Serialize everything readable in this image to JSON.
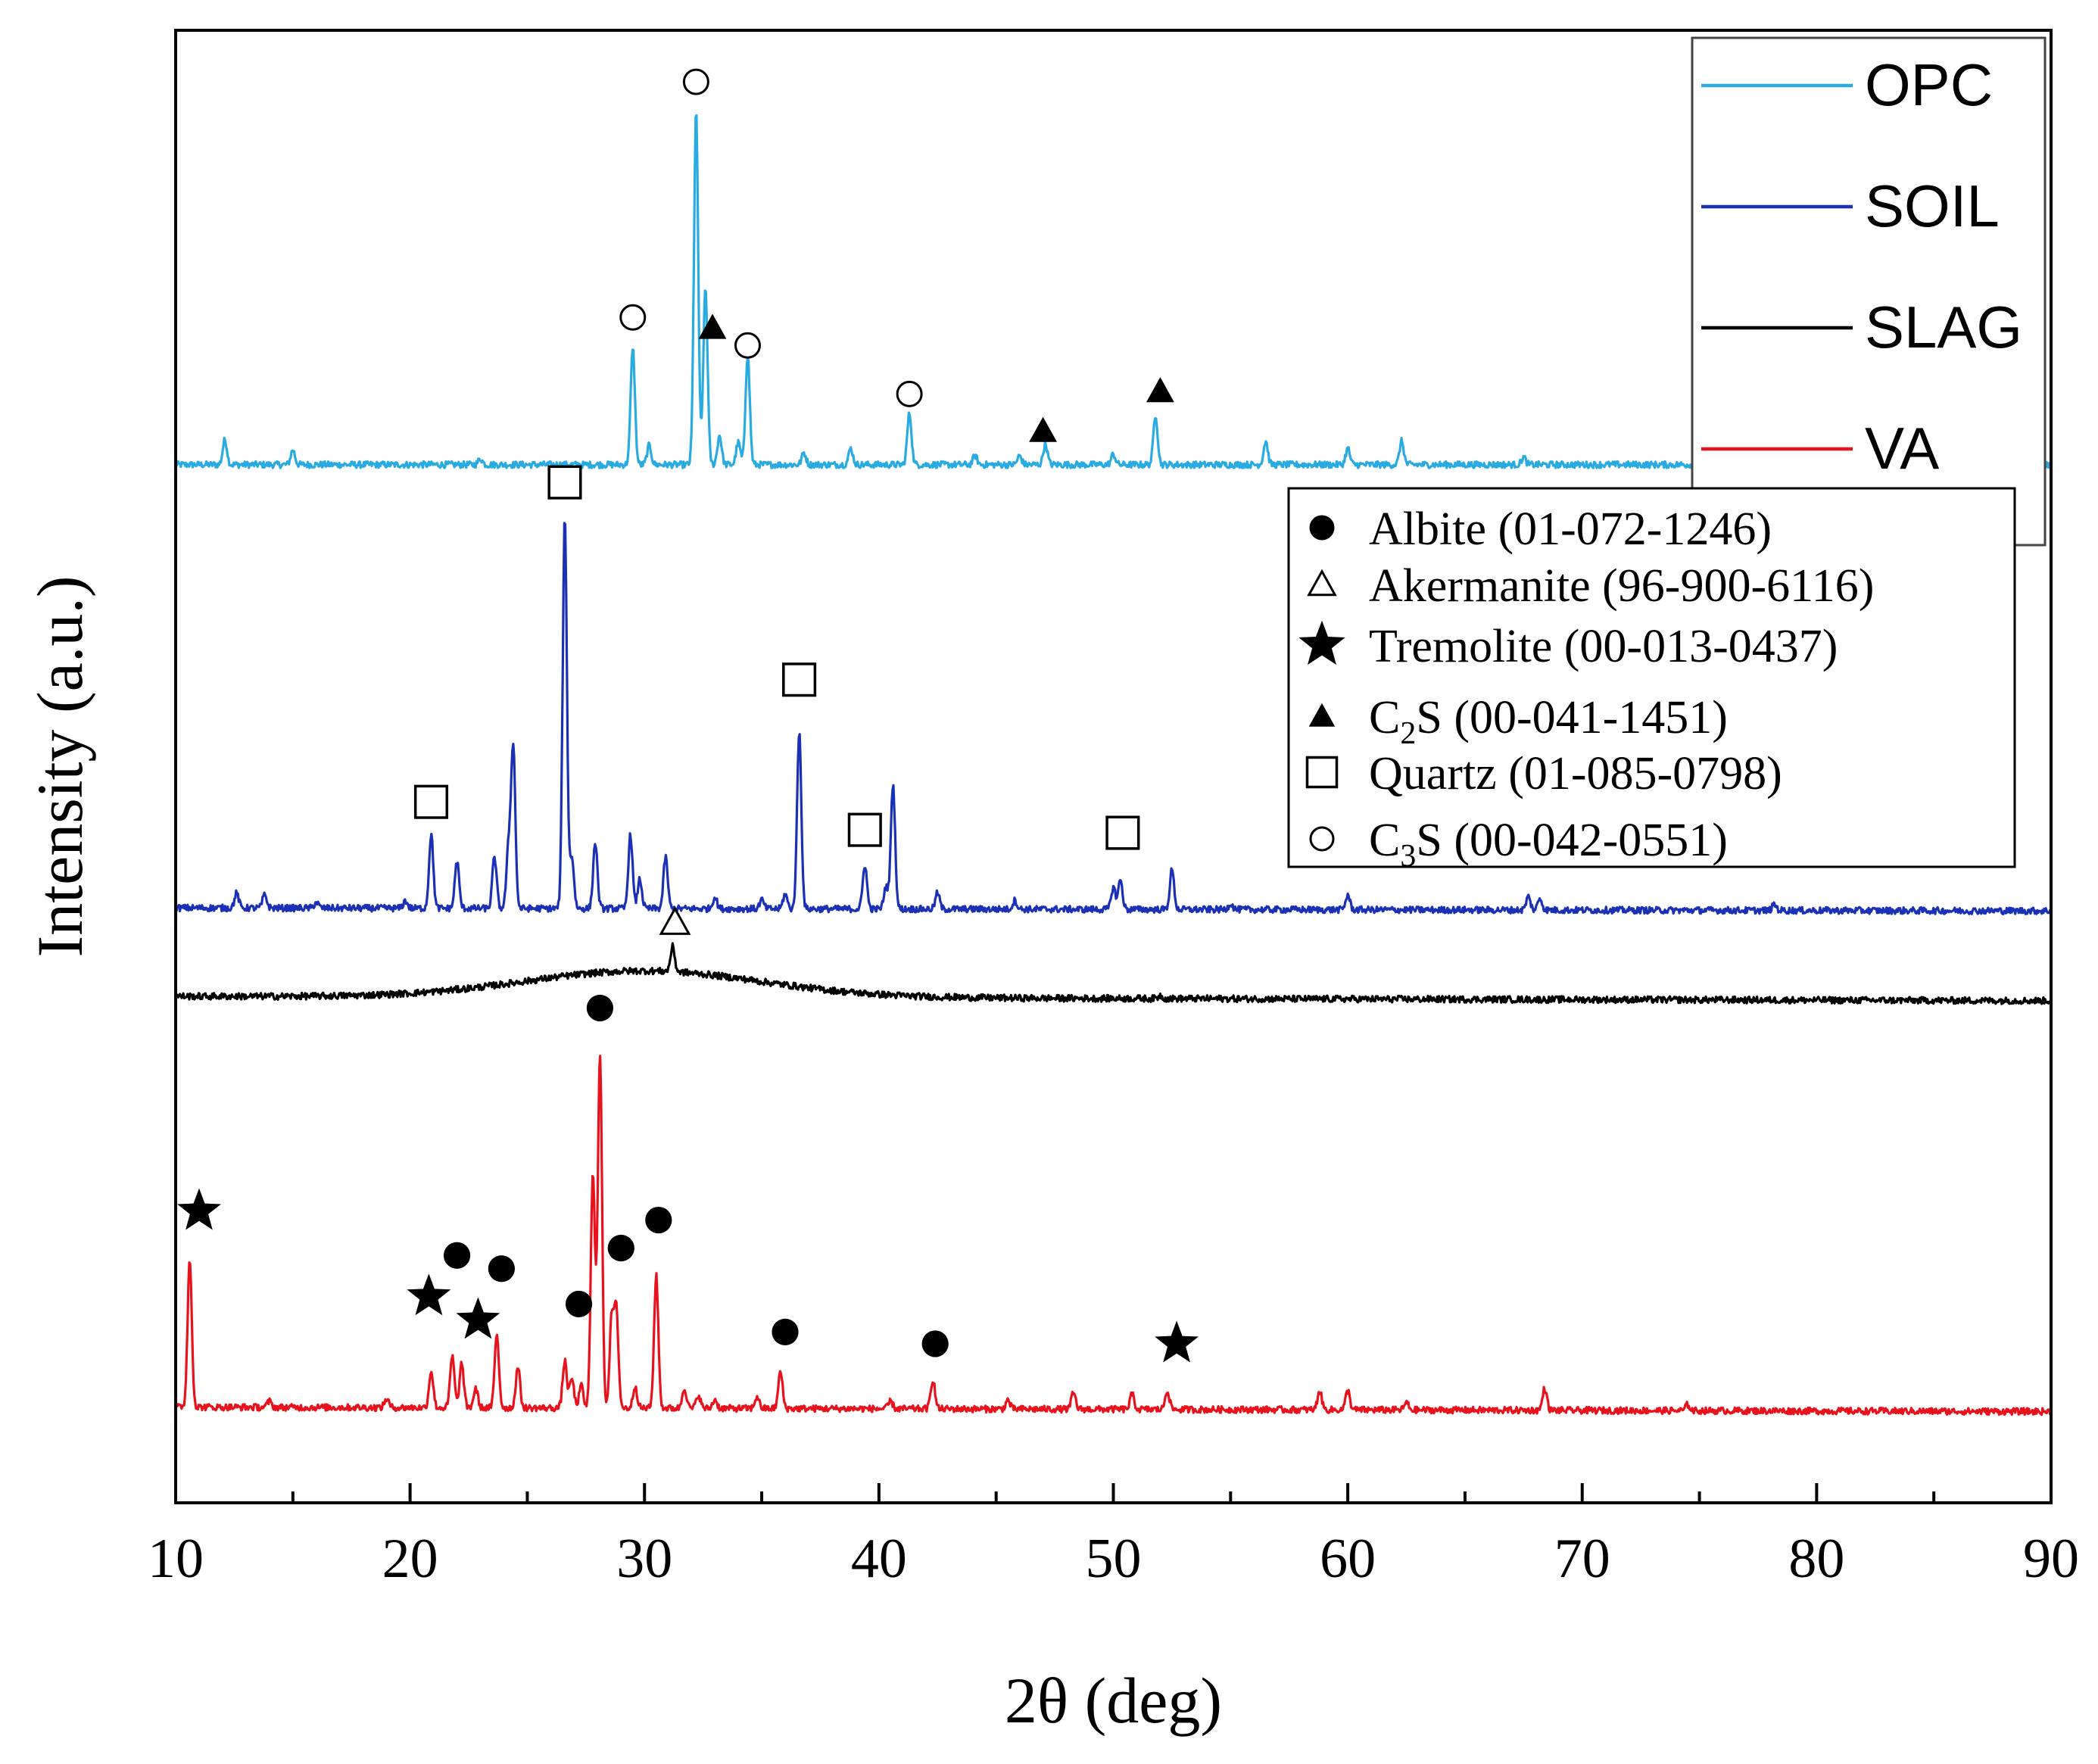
{
  "chart_data": {
    "type": "line",
    "title": "",
    "xlabel": "2θ (deg)",
    "ylabel": "Intensity (a.u.)",
    "xlim": [
      10,
      90
    ],
    "ylim": [
      0,
      100
    ],
    "x_major_ticks": [
      10,
      20,
      30,
      40,
      50,
      60,
      70,
      80,
      90
    ],
    "x_tick_labels": [
      "10",
      "20",
      "30",
      "40",
      "50",
      "60",
      "70",
      "80",
      "90"
    ],
    "x_minor_step": 5,
    "grid": false,
    "series": [
      {
        "name": "OPC",
        "color": "#29abe2",
        "baseline": [
          [
            10,
            70.5
          ],
          [
            90,
            70.5
          ]
        ],
        "peaks": [
          [
            12.1,
            1.7
          ],
          [
            15.0,
            1.0
          ],
          [
            23.0,
            0.4
          ],
          [
            29.5,
            8.0
          ],
          [
            30.2,
            1.3
          ],
          [
            32.2,
            24.0
          ],
          [
            32.6,
            12.0
          ],
          [
            33.2,
            2.0
          ],
          [
            34.0,
            1.5
          ],
          [
            34.4,
            7.5
          ],
          [
            36.8,
            0.8
          ],
          [
            38.8,
            1.1
          ],
          [
            41.3,
            3.5
          ],
          [
            44.1,
            0.6
          ],
          [
            46.0,
            0.6
          ],
          [
            47.1,
            1.4
          ],
          [
            50.0,
            0.7
          ],
          [
            51.8,
            3.4
          ],
          [
            56.5,
            1.6
          ],
          [
            60.0,
            1.1
          ],
          [
            62.3,
            1.6
          ],
          [
            67.5,
            0.5
          ]
        ],
        "humps": []
      },
      {
        "name": "SOIL",
        "color": "#1a30b5",
        "baseline": [
          [
            10,
            40.4
          ],
          [
            90,
            40.2
          ]
        ],
        "peaks": [
          [
            12.6,
            1.0
          ],
          [
            13.8,
            0.9
          ],
          [
            16.0,
            0.4
          ],
          [
            19.8,
            0.5
          ],
          [
            20.9,
            5.0
          ],
          [
            22.0,
            3.2
          ],
          [
            23.6,
            3.5
          ],
          [
            24.2,
            4.0
          ],
          [
            24.4,
            11.0
          ],
          [
            26.6,
            26.5
          ],
          [
            26.9,
            3.5
          ],
          [
            27.9,
            4.5
          ],
          [
            29.4,
            5.0
          ],
          [
            29.8,
            2.0
          ],
          [
            30.9,
            3.5
          ],
          [
            33.0,
            0.8
          ],
          [
            35.0,
            0.6
          ],
          [
            36.0,
            1.0
          ],
          [
            36.6,
            12.0
          ],
          [
            39.4,
            3.0
          ],
          [
            40.3,
            1.5
          ],
          [
            40.6,
            8.5
          ],
          [
            42.5,
            1.1
          ],
          [
            45.8,
            0.6
          ],
          [
            50.0,
            1.5
          ],
          [
            50.3,
            2.0
          ],
          [
            52.5,
            2.7
          ],
          [
            55.0,
            0.4
          ],
          [
            60.0,
            1.0
          ],
          [
            67.7,
            0.9
          ],
          [
            68.2,
            0.8
          ],
          [
            78.2,
            0.4
          ]
        ],
        "humps": []
      },
      {
        "name": "SLAG",
        "color": "#000000",
        "baseline": [
          [
            10,
            34.4
          ],
          [
            90,
            34.1
          ]
        ],
        "peaks": [
          [
            31.2,
            1.7
          ],
          [
            52.0,
            0.2
          ]
        ],
        "humps": [
          [
            30.0,
            1.8,
            5.0
          ]
        ]
      },
      {
        "name": "VA",
        "color": "#e8121d",
        "baseline": [
          [
            10,
            6.5
          ],
          [
            90,
            6.2
          ]
        ],
        "peaks": [
          [
            10.6,
            10.0
          ],
          [
            14.0,
            0.4
          ],
          [
            19.0,
            0.6
          ],
          [
            20.9,
            2.5
          ],
          [
            21.8,
            3.5
          ],
          [
            22.2,
            3.0
          ],
          [
            22.8,
            1.3
          ],
          [
            23.7,
            5.0
          ],
          [
            24.6,
            2.8
          ],
          [
            26.6,
            3.2
          ],
          [
            26.9,
            2.0
          ],
          [
            27.3,
            1.5
          ],
          [
            27.8,
            16.0
          ],
          [
            28.1,
            24.0
          ],
          [
            28.6,
            6.0
          ],
          [
            28.8,
            6.5
          ],
          [
            29.6,
            1.5
          ],
          [
            30.5,
            9.0
          ],
          [
            31.7,
            1.4
          ],
          [
            32.3,
            0.9
          ],
          [
            33.0,
            0.6
          ],
          [
            34.8,
            0.8
          ],
          [
            35.8,
            2.5
          ],
          [
            40.5,
            0.5
          ],
          [
            42.3,
            2.0
          ],
          [
            45.5,
            0.6
          ],
          [
            48.3,
            1.1
          ],
          [
            50.8,
            1.0
          ],
          [
            52.3,
            1.3
          ],
          [
            58.8,
            1.3
          ],
          [
            60.0,
            1.3
          ],
          [
            62.5,
            0.5
          ],
          [
            68.4,
            1.5
          ],
          [
            74.5,
            0.4
          ]
        ],
        "humps": []
      }
    ],
    "peak_markers": [
      {
        "phase": "C3S",
        "symbol": "circle-open",
        "points": [
          [
            32.2,
            96.5
          ],
          [
            29.5,
            80.5
          ],
          [
            34.4,
            78.6
          ],
          [
            41.3,
            75.3
          ]
        ]
      },
      {
        "phase": "C2S",
        "symbol": "triangle-filled",
        "points": [
          [
            32.9,
            79.8
          ],
          [
            47.0,
            72.8
          ],
          [
            52.0,
            75.5
          ]
        ]
      },
      {
        "phase": "Quartz",
        "symbol": "square-open",
        "points": [
          [
            26.6,
            69.3
          ],
          [
            36.6,
            55.9
          ],
          [
            20.9,
            47.6
          ],
          [
            39.4,
            45.7
          ],
          [
            50.4,
            45.5
          ]
        ]
      },
      {
        "phase": "Akermanite",
        "symbol": "triangle-open",
        "points": [
          [
            31.3,
            39.4
          ]
        ]
      },
      {
        "phase": "Albite",
        "symbol": "circle-filled",
        "points": [
          [
            28.1,
            33.6
          ],
          [
            30.6,
            19.2
          ],
          [
            22.0,
            16.8
          ],
          [
            29.0,
            17.3
          ],
          [
            23.9,
            15.9
          ],
          [
            27.2,
            13.5
          ],
          [
            36.0,
            11.6
          ],
          [
            42.4,
            10.8
          ]
        ]
      },
      {
        "phase": "Tremolite",
        "symbol": "star",
        "points": [
          [
            11.0,
            19.8
          ],
          [
            20.8,
            14.0
          ],
          [
            22.9,
            12.4
          ],
          [
            52.7,
            10.8
          ]
        ]
      }
    ]
  },
  "legend_series": {
    "placement": "top-right",
    "entries": [
      {
        "label": "OPC",
        "color": "#29abe2"
      },
      {
        "label": "SOIL",
        "color": "#1a30b5"
      },
      {
        "label": "SLAG",
        "color": "#000000"
      },
      {
        "label": "VA",
        "color": "#e8121d"
      }
    ]
  },
  "legend_phases": {
    "placement": "middle-right",
    "entries": [
      {
        "symbol": "circle-filled",
        "name": "Albite",
        "sub": "",
        "rest": "",
        "code": "(01-072-1246)"
      },
      {
        "symbol": "triangle-open",
        "name": "Akermanite",
        "sub": "",
        "rest": "",
        "code": "(96-900-6116)"
      },
      {
        "symbol": "star",
        "name": "Tremolite",
        "sub": "",
        "rest": "",
        "code": "(00-013-0437)"
      },
      {
        "symbol": "triangle-filled",
        "name": "C",
        "sub": "2",
        "rest": "S",
        "code": "(00-041-1451)"
      },
      {
        "symbol": "square-open",
        "name": "Quartz",
        "sub": "",
        "rest": "",
        "code": "(01-085-0798)"
      },
      {
        "symbol": "circle-open",
        "name": "C",
        "sub": "3",
        "rest": "S",
        "code": "(00-042-0551)"
      }
    ]
  }
}
